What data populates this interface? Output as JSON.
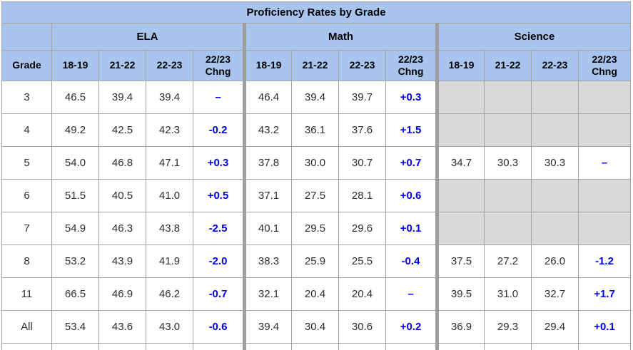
{
  "chart_data": {
    "type": "table",
    "title": "Proficiency Rates by Grade",
    "grade_label": "Grade",
    "sections": [
      "ELA",
      "Math",
      "Science"
    ],
    "year_headers": [
      "18-19",
      "21-22",
      "22-23",
      "22/23\nChng"
    ],
    "no_change_symbol": "–",
    "rows": [
      {
        "grade": "3",
        "ela": [
          "46.5",
          "39.4",
          "39.4",
          "–"
        ],
        "math": [
          "46.4",
          "39.4",
          "39.7",
          "+0.3"
        ],
        "science": null
      },
      {
        "grade": "4",
        "ela": [
          "49.2",
          "42.5",
          "42.3",
          "-0.2"
        ],
        "math": [
          "43.2",
          "36.1",
          "37.6",
          "+1.5"
        ],
        "science": null
      },
      {
        "grade": "5",
        "ela": [
          "54.0",
          "46.8",
          "47.1",
          "+0.3"
        ],
        "math": [
          "37.8",
          "30.0",
          "30.7",
          "+0.7"
        ],
        "science": [
          "34.7",
          "30.3",
          "30.3",
          "–"
        ]
      },
      {
        "grade": "6",
        "ela": [
          "51.5",
          "40.5",
          "41.0",
          "+0.5"
        ],
        "math": [
          "37.1",
          "27.5",
          "28.1",
          "+0.6"
        ],
        "science": null
      },
      {
        "grade": "7",
        "ela": [
          "54.9",
          "46.3",
          "43.8",
          "-2.5"
        ],
        "math": [
          "40.1",
          "29.5",
          "29.6",
          "+0.1"
        ],
        "science": null
      },
      {
        "grade": "8",
        "ela": [
          "53.2",
          "43.9",
          "41.9",
          "-2.0"
        ],
        "math": [
          "38.3",
          "25.9",
          "25.5",
          "-0.4"
        ],
        "science": [
          "37.5",
          "27.2",
          "26.0",
          "-1.2"
        ]
      },
      {
        "grade": "11",
        "ela": [
          "66.5",
          "46.9",
          "46.2",
          "-0.7"
        ],
        "math": [
          "32.1",
          "20.4",
          "20.4",
          "–"
        ],
        "science": [
          "39.5",
          "31.0",
          "32.7",
          "+1.7"
        ]
      },
      {
        "grade": "All",
        "ela": [
          "53.4",
          "43.6",
          "43.0",
          "-0.6"
        ],
        "math": [
          "39.4",
          "30.4",
          "30.6",
          "+0.2"
        ],
        "science": [
          "36.9",
          "29.3",
          "29.4",
          "+0.1"
        ]
      }
    ],
    "colors": {
      "header_bg": "#a9c5ee",
      "blank_cell_bg": "#d9d9d9",
      "change_text": "#0000ee",
      "grid_border": "#a3a3a3",
      "section_separator": "#9e9e9e",
      "data_text": "#2e2e2e",
      "header_text": "#000000"
    }
  }
}
